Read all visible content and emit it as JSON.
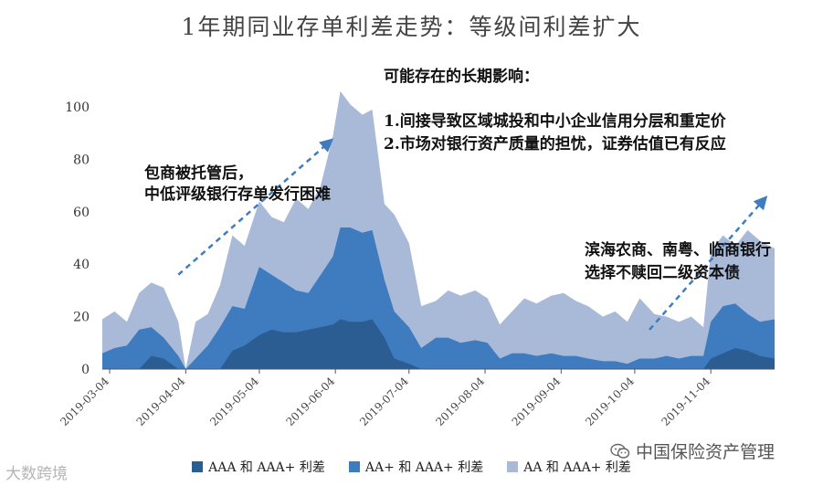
{
  "chart_data": {
    "type": "area",
    "title": "1年期同业存单利差走势：等级间利差扩大",
    "ylim": [
      0,
      105
    ],
    "yticks": [
      0,
      20,
      40,
      60,
      80,
      100
    ],
    "x_range": [
      "2019-03-01",
      "2019-11-30"
    ],
    "xticks": [
      "2019-03-04",
      "2019-04-04",
      "2019-05-04",
      "2019-06-04",
      "2019-07-04",
      "2019-08-04",
      "2019-09-04",
      "2019-10-04",
      "2019-11-04"
    ],
    "legend_position": "bottom",
    "series": [
      {
        "name": "AA 和 AAA+ 利差",
        "color": "#a9bad8",
        "points": [
          [
            "2019-03-01",
            19
          ],
          [
            "2019-03-06",
            22
          ],
          [
            "2019-03-11",
            18
          ],
          [
            "2019-03-16",
            29
          ],
          [
            "2019-03-21",
            33
          ],
          [
            "2019-03-26",
            31
          ],
          [
            "2019-04-01",
            18
          ],
          [
            "2019-04-04",
            0
          ],
          [
            "2019-04-08",
            18
          ],
          [
            "2019-04-13",
            21
          ],
          [
            "2019-04-18",
            32
          ],
          [
            "2019-04-23",
            51
          ],
          [
            "2019-04-28",
            47
          ],
          [
            "2019-05-04",
            64
          ],
          [
            "2019-05-09",
            58
          ],
          [
            "2019-05-14",
            56
          ],
          [
            "2019-05-19",
            65
          ],
          [
            "2019-05-24",
            61
          ],
          [
            "2019-05-29",
            70
          ],
          [
            "2019-06-03",
            89
          ],
          [
            "2019-06-06",
            106
          ],
          [
            "2019-06-10",
            101
          ],
          [
            "2019-06-15",
            97
          ],
          [
            "2019-06-19",
            99
          ],
          [
            "2019-06-24",
            63
          ],
          [
            "2019-06-28",
            59
          ],
          [
            "2019-07-04",
            48
          ],
          [
            "2019-07-09",
            24
          ],
          [
            "2019-07-15",
            26
          ],
          [
            "2019-07-20",
            30
          ],
          [
            "2019-07-25",
            28
          ],
          [
            "2019-07-31",
            30
          ],
          [
            "2019-08-05",
            27
          ],
          [
            "2019-08-10",
            17
          ],
          [
            "2019-08-15",
            22
          ],
          [
            "2019-08-20",
            27
          ],
          [
            "2019-08-25",
            25
          ],
          [
            "2019-08-31",
            28
          ],
          [
            "2019-09-05",
            29
          ],
          [
            "2019-09-10",
            26
          ],
          [
            "2019-09-15",
            24
          ],
          [
            "2019-09-21",
            20
          ],
          [
            "2019-09-26",
            22
          ],
          [
            "2019-10-01",
            18
          ],
          [
            "2019-10-06",
            27
          ],
          [
            "2019-10-12",
            21
          ],
          [
            "2019-10-17",
            20
          ],
          [
            "2019-10-22",
            18
          ],
          [
            "2019-10-27",
            20
          ],
          [
            "2019-11-01",
            16
          ],
          [
            "2019-11-04",
            45
          ],
          [
            "2019-11-09",
            51
          ],
          [
            "2019-11-14",
            47
          ],
          [
            "2019-11-19",
            53
          ],
          [
            "2019-11-24",
            49
          ],
          [
            "2019-11-30",
            46
          ]
        ]
      },
      {
        "name": "AA+ 和 AAA+ 利差",
        "color": "#3f7cbf",
        "points": [
          [
            "2019-03-01",
            6
          ],
          [
            "2019-03-06",
            8
          ],
          [
            "2019-03-11",
            9
          ],
          [
            "2019-03-16",
            15
          ],
          [
            "2019-03-21",
            16
          ],
          [
            "2019-03-26",
            12
          ],
          [
            "2019-04-01",
            5
          ],
          [
            "2019-04-04",
            0
          ],
          [
            "2019-04-08",
            4
          ],
          [
            "2019-04-13",
            9
          ],
          [
            "2019-04-18",
            16
          ],
          [
            "2019-04-23",
            24
          ],
          [
            "2019-04-28",
            23
          ],
          [
            "2019-05-04",
            39
          ],
          [
            "2019-05-09",
            36
          ],
          [
            "2019-05-14",
            33
          ],
          [
            "2019-05-19",
            30
          ],
          [
            "2019-05-24",
            29
          ],
          [
            "2019-05-29",
            36
          ],
          [
            "2019-06-03",
            43
          ],
          [
            "2019-06-06",
            54
          ],
          [
            "2019-06-10",
            54
          ],
          [
            "2019-06-15",
            52
          ],
          [
            "2019-06-19",
            53
          ],
          [
            "2019-06-24",
            34
          ],
          [
            "2019-06-28",
            22
          ],
          [
            "2019-07-04",
            16
          ],
          [
            "2019-07-09",
            8
          ],
          [
            "2019-07-15",
            12
          ],
          [
            "2019-07-20",
            12
          ],
          [
            "2019-07-25",
            10
          ],
          [
            "2019-07-31",
            11
          ],
          [
            "2019-08-05",
            10
          ],
          [
            "2019-08-10",
            4
          ],
          [
            "2019-08-15",
            6
          ],
          [
            "2019-08-20",
            6
          ],
          [
            "2019-08-25",
            5
          ],
          [
            "2019-08-31",
            6
          ],
          [
            "2019-09-05",
            5
          ],
          [
            "2019-09-10",
            5
          ],
          [
            "2019-09-15",
            4
          ],
          [
            "2019-09-21",
            3
          ],
          [
            "2019-09-26",
            3
          ],
          [
            "2019-10-01",
            2
          ],
          [
            "2019-10-06",
            4
          ],
          [
            "2019-10-12",
            4
          ],
          [
            "2019-10-17",
            5
          ],
          [
            "2019-10-22",
            4
          ],
          [
            "2019-10-27",
            5
          ],
          [
            "2019-11-01",
            5
          ],
          [
            "2019-11-04",
            18
          ],
          [
            "2019-11-09",
            24
          ],
          [
            "2019-11-14",
            25
          ],
          [
            "2019-11-19",
            21
          ],
          [
            "2019-11-24",
            18
          ],
          [
            "2019-11-30",
            19
          ]
        ]
      },
      {
        "name": "AAA 和 AAA+ 利差",
        "color": "#2b5d92",
        "points": [
          [
            "2019-03-01",
            0
          ],
          [
            "2019-03-16",
            0
          ],
          [
            "2019-03-21",
            5
          ],
          [
            "2019-03-26",
            4
          ],
          [
            "2019-04-01",
            0
          ],
          [
            "2019-04-18",
            0
          ],
          [
            "2019-04-23",
            7
          ],
          [
            "2019-04-28",
            9
          ],
          [
            "2019-05-04",
            13
          ],
          [
            "2019-05-09",
            15
          ],
          [
            "2019-05-14",
            14
          ],
          [
            "2019-05-19",
            14
          ],
          [
            "2019-05-24",
            15
          ],
          [
            "2019-05-29",
            16
          ],
          [
            "2019-06-03",
            17
          ],
          [
            "2019-06-06",
            19
          ],
          [
            "2019-06-10",
            18
          ],
          [
            "2019-06-15",
            18
          ],
          [
            "2019-06-19",
            19
          ],
          [
            "2019-06-24",
            12
          ],
          [
            "2019-06-28",
            4
          ],
          [
            "2019-07-04",
            2
          ],
          [
            "2019-07-09",
            0
          ],
          [
            "2019-10-27",
            0
          ],
          [
            "2019-11-01",
            0
          ],
          [
            "2019-11-04",
            4
          ],
          [
            "2019-11-09",
            6
          ],
          [
            "2019-11-14",
            8
          ],
          [
            "2019-11-19",
            7
          ],
          [
            "2019-11-24",
            5
          ],
          [
            "2019-11-30",
            4
          ]
        ]
      }
    ],
    "annotations": {
      "top_heading": "可能存在的长期影响：",
      "top_line1": "1.间接导致区域城投和中小企业信用分层和重定价",
      "top_line2": "2.市场对银行资产质量的担忧，证券估值已有反应",
      "left_line1": "包商被托管后，",
      "left_line2": "中低评级银行存单发行困难",
      "right_line1": "滨海农商、南粤、临商银行",
      "right_line2": "选择不赎回二级资本债"
    },
    "arrows": [
      {
        "from": [
          "2019-04-01",
          36
        ],
        "to": [
          "2019-06-02",
          87
        ]
      },
      {
        "from": [
          "2019-10-10",
          15
        ],
        "to": [
          "2019-11-26",
          65
        ]
      }
    ],
    "arrow_color": "#3f7cbf"
  },
  "watermarks": {
    "left": "大数跨境",
    "right": "中国保险资产管理"
  }
}
